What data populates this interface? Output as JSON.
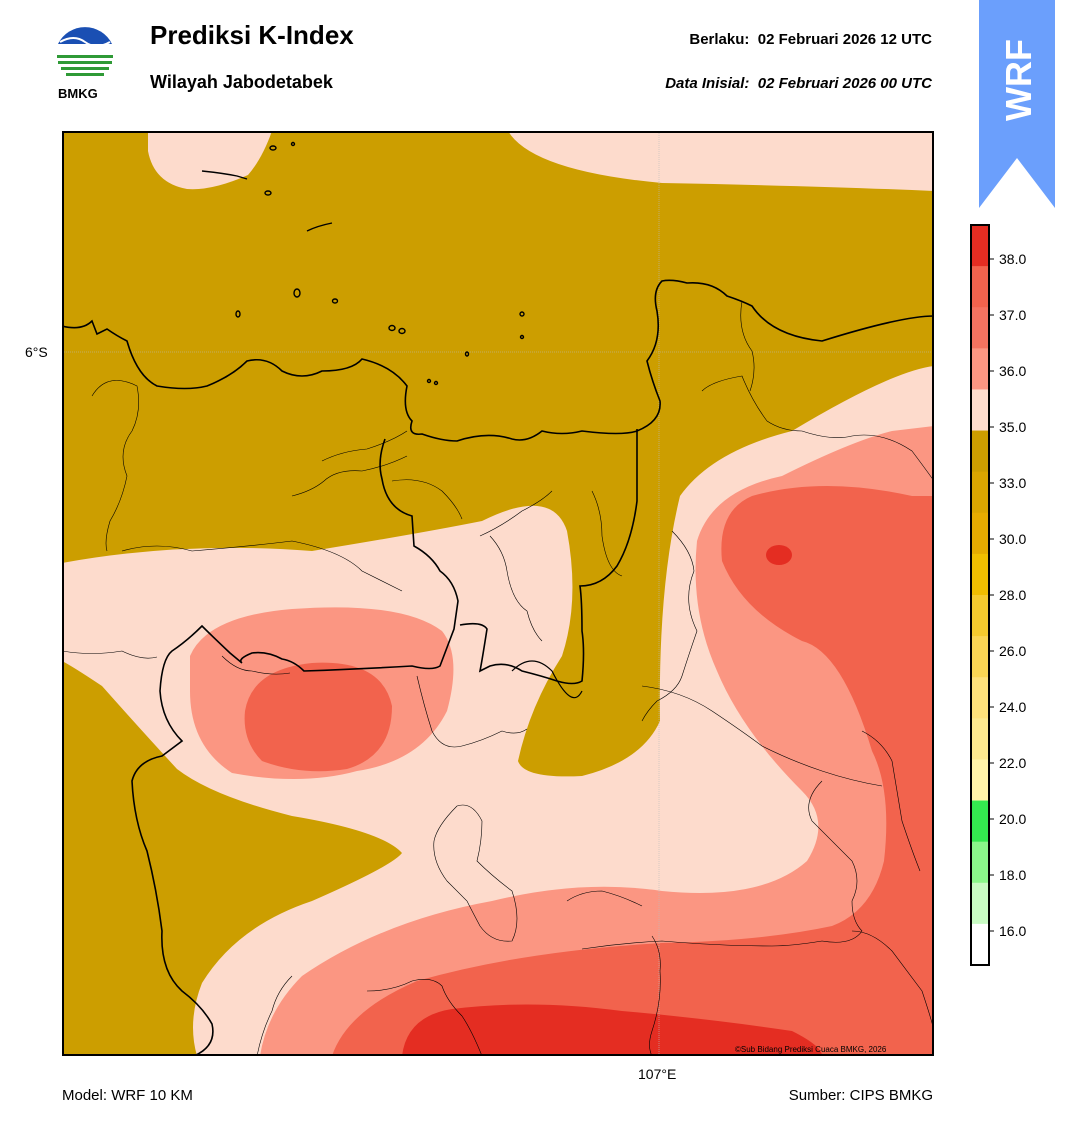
{
  "header": {
    "title": "Prediksi K-Index",
    "subtitle": "Wilayah Jabodetabek",
    "valid_label": "Berlaku:",
    "valid_time": "02 Februari 2026 12 UTC",
    "init_label": "Data Inisial:",
    "init_time": "02 Februari 2026 00 UTC",
    "logo_text": "BMKG"
  },
  "ribbon": {
    "text": "WRF",
    "color": "#6b9ffc"
  },
  "map": {
    "lat_label": "6°S",
    "lon_label": "107°E",
    "copyright": "©Sub Bidang Prediksi Cuaca BMKG, 2026",
    "colors": {
      "lt33": "#cc9e00",
      "r35_36": "#fddbcc",
      "r36_37": "#fb9682",
      "r37_38": "#f2634d",
      "gt38": "#e42d22"
    }
  },
  "colorbar": {
    "ticks": [
      "38.0",
      "37.0",
      "36.0",
      "35.0",
      "33.0",
      "30.0",
      "28.0",
      "26.0",
      "24.0",
      "22.0",
      "20.0",
      "18.0",
      "16.0"
    ],
    "bands": [
      "#e42d22",
      "#f2634d",
      "#f57360",
      "#fb9682",
      "#fddbcc",
      "#cc9e00",
      "#d9a500",
      "#e5ab00",
      "#f0be00",
      "#f5cb2e",
      "#fad654",
      "#fee17a",
      "#fde98f",
      "#fff4a8",
      "#34e94f",
      "#8af78a",
      "#c8fbc3",
      "#ffffff"
    ]
  },
  "footer": {
    "model": "Model: WRF 10 KM",
    "source": "Sumber: CIPS BMKG"
  }
}
